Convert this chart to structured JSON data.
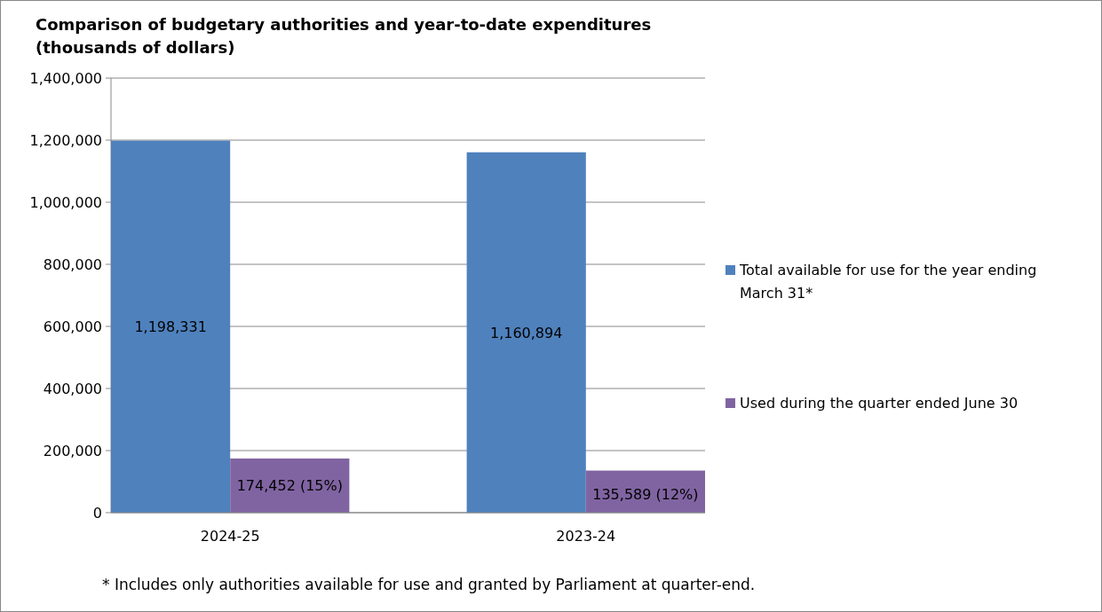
{
  "chart_data": {
    "type": "bar",
    "title": "Comparison of budgetary authorities and year-to-date expenditures\n(thousands of dollars)",
    "categories": [
      "2024-25",
      "2023-24"
    ],
    "series": [
      {
        "name": "Total available for use for the year ending March 31*",
        "color": "#4f81bd",
        "values": [
          1198331,
          1160894
        ],
        "value_labels": [
          "1,198,331",
          "1,160,894"
        ]
      },
      {
        "name": "Used during the quarter ended June 30",
        "color": "#8064a2",
        "values": [
          174452,
          135589
        ],
        "value_labels": [
          "174,452 (15%)",
          "135,589 (12%)"
        ]
      }
    ],
    "ylim": [
      0,
      1400000
    ],
    "yticks": [
      0,
      {
        "value": 200000,
        "label": "200,000"
      },
      {
        "value": 400000,
        "label": "400,000"
      },
      {
        "value": 600000,
        "label": "600,000"
      },
      {
        "value": 800000,
        "label": "800,000"
      },
      {
        "value": 1000000,
        "label": "1,000,000"
      },
      {
        "value": 1200000,
        "label": "1,200,000"
      },
      {
        "value": 1400000,
        "label": "1,400,000"
      }
    ],
    "grid": "y",
    "legend": "right",
    "annotations": [
      "* Includes only authorities available for use and granted by Parliament at quarter-end."
    ]
  }
}
